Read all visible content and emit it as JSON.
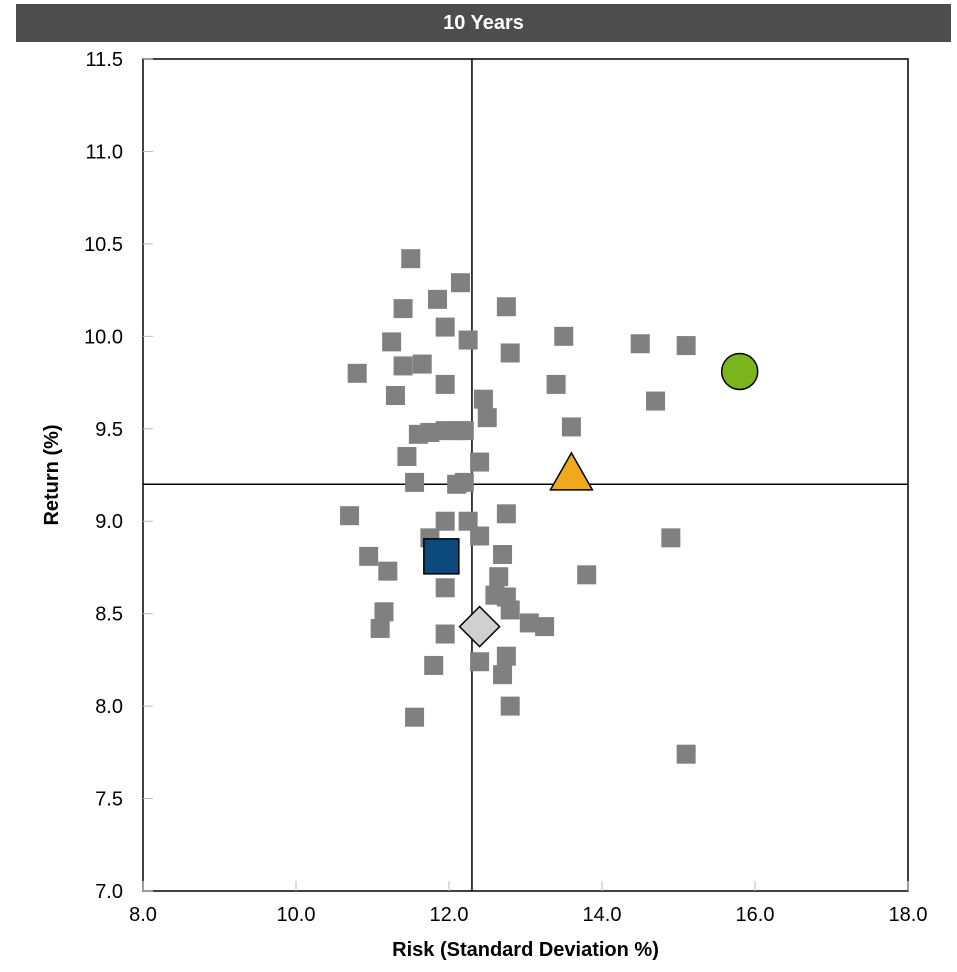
{
  "chart_data": {
    "type": "scatter",
    "title": "10 Years",
    "xlabel": "Risk (Standard Deviation %)",
    "ylabel": "Return (%)",
    "xlim": [
      8.0,
      18.0
    ],
    "ylim": [
      7.0,
      11.5
    ],
    "x_ticks": [
      "8.0",
      "10.0",
      "12.0",
      "14.0",
      "16.0",
      "18.0"
    ],
    "y_ticks": [
      "7.0",
      "7.5",
      "8.0",
      "8.5",
      "9.0",
      "9.5",
      "10.0",
      "10.5",
      "11.0",
      "11.5"
    ],
    "grid": false,
    "reference_lines": {
      "x": 12.3,
      "y": 9.2
    },
    "series": [
      {
        "marker": "square",
        "color": "#808080",
        "points": [
          [
            11.5,
            10.42
          ],
          [
            12.15,
            10.29
          ],
          [
            11.4,
            10.15
          ],
          [
            11.85,
            10.2
          ],
          [
            12.75,
            10.16
          ],
          [
            11.95,
            10.05
          ],
          [
            11.25,
            9.97
          ],
          [
            12.25,
            9.98
          ],
          [
            13.5,
            10.0
          ],
          [
            14.5,
            9.96
          ],
          [
            15.1,
            9.95
          ],
          [
            10.8,
            9.8
          ],
          [
            11.4,
            9.84
          ],
          [
            11.65,
            9.85
          ],
          [
            11.95,
            9.74
          ],
          [
            12.8,
            9.91
          ],
          [
            13.4,
            9.74
          ],
          [
            11.3,
            9.68
          ],
          [
            12.45,
            9.66
          ],
          [
            12.5,
            9.56
          ],
          [
            14.7,
            9.65
          ],
          [
            13.6,
            9.51
          ],
          [
            11.6,
            9.47
          ],
          [
            11.75,
            9.48
          ],
          [
            11.95,
            9.49
          ],
          [
            12.1,
            9.49
          ],
          [
            12.2,
            9.49
          ],
          [
            11.45,
            9.35
          ],
          [
            12.4,
            9.32
          ],
          [
            11.55,
            9.21
          ],
          [
            12.1,
            9.2
          ],
          [
            12.2,
            9.21
          ],
          [
            10.7,
            9.03
          ],
          [
            11.95,
            9.0
          ],
          [
            12.25,
            9.0
          ],
          [
            12.75,
            9.04
          ],
          [
            11.75,
            8.91
          ],
          [
            12.4,
            8.92
          ],
          [
            10.95,
            8.81
          ],
          [
            12.7,
            8.82
          ],
          [
            11.2,
            8.73
          ],
          [
            14.9,
            8.91
          ],
          [
            13.8,
            8.71
          ],
          [
            12.65,
            8.7
          ],
          [
            11.95,
            8.64
          ],
          [
            12.6,
            8.6
          ],
          [
            12.75,
            8.59
          ],
          [
            11.15,
            8.51
          ],
          [
            12.8,
            8.52
          ],
          [
            13.05,
            8.45
          ],
          [
            13.25,
            8.43
          ],
          [
            11.1,
            8.42
          ],
          [
            11.95,
            8.39
          ],
          [
            12.4,
            8.24
          ],
          [
            12.75,
            8.27
          ],
          [
            11.8,
            8.22
          ],
          [
            12.7,
            8.17
          ],
          [
            12.8,
            8.0
          ],
          [
            11.55,
            7.94
          ],
          [
            15.1,
            7.74
          ]
        ]
      },
      {
        "marker": "circle",
        "color": "#7ab51d",
        "points": [
          [
            15.8,
            9.81
          ]
        ]
      },
      {
        "marker": "triangle",
        "color": "#f0a81c",
        "points": [
          [
            13.6,
            9.24
          ]
        ]
      },
      {
        "marker": "square-large",
        "color": "#0c4a7d",
        "points": [
          [
            11.9,
            8.81
          ]
        ]
      },
      {
        "marker": "diamond",
        "color": "#d0d0d0",
        "points": [
          [
            12.4,
            8.43
          ]
        ]
      }
    ]
  }
}
